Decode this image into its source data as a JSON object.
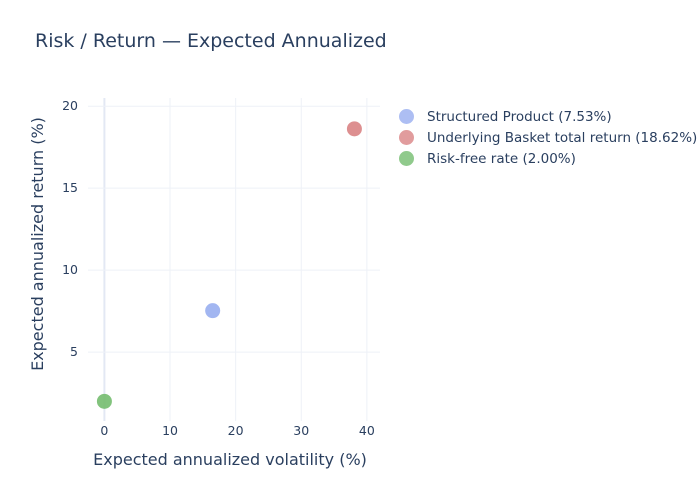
{
  "chart_data": {
    "type": "scatter",
    "title": "Risk / Return — Expected Annualized",
    "xlabel": "Expected annualized volatility (%)",
    "ylabel": "Expected annualized return (%)",
    "xlim": [
      -2.5,
      42
    ],
    "ylim": [
      0.8,
      20.5
    ],
    "xticks": [
      0,
      10,
      20,
      30,
      40
    ],
    "yticks": [
      5,
      10,
      15,
      20
    ],
    "grid": true,
    "legend_position": "right",
    "series": [
      {
        "name": "Structured Product (7.53%)",
        "color": "#98aef0",
        "x": [
          16.5
        ],
        "y": [
          7.53
        ]
      },
      {
        "name": "Underlying Basket total return (18.62%)",
        "color": "#d98384",
        "x": [
          38.1
        ],
        "y": [
          18.62
        ]
      },
      {
        "name": "Risk-free rate (2.00%)",
        "color": "#74bd6f",
        "x": [
          0
        ],
        "y": [
          2.0
        ]
      }
    ]
  }
}
